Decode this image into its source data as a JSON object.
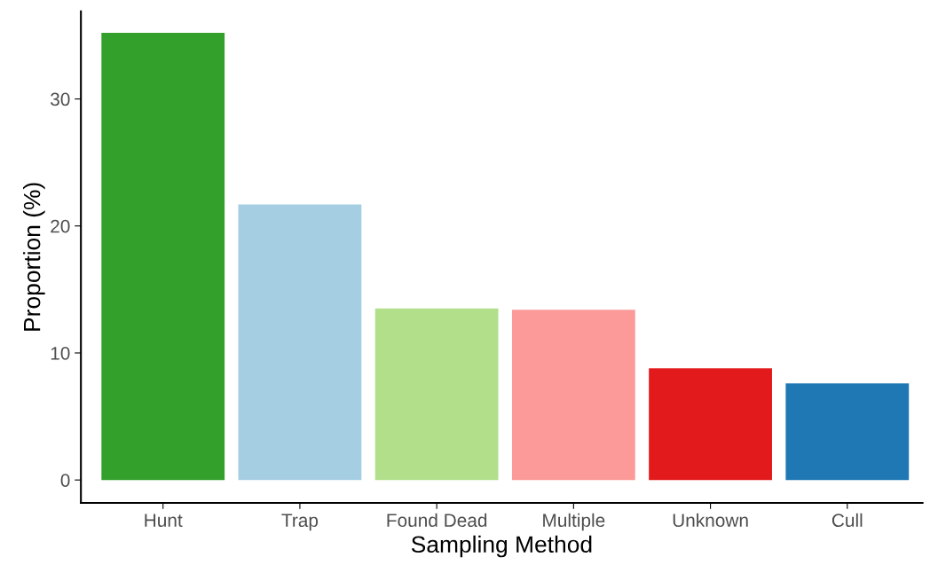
{
  "chart_data": {
    "type": "bar",
    "xlabel": "Sampling Method",
    "ylabel": "Proportion (%)",
    "categories": [
      "Hunt",
      "Trap",
      "Found Dead",
      "Multiple",
      "Unknown",
      "Cull"
    ],
    "values": [
      35.2,
      21.7,
      13.5,
      13.4,
      8.8,
      7.6
    ],
    "colors": [
      "#33a02c",
      "#a6cee3",
      "#b2df8a",
      "#fb9a99",
      "#e31a1c",
      "#1f78b4"
    ],
    "ylim": [
      -1.8,
      36.9
    ],
    "yticks": [
      0,
      10,
      20,
      30
    ],
    "grid": false,
    "legend": false
  }
}
